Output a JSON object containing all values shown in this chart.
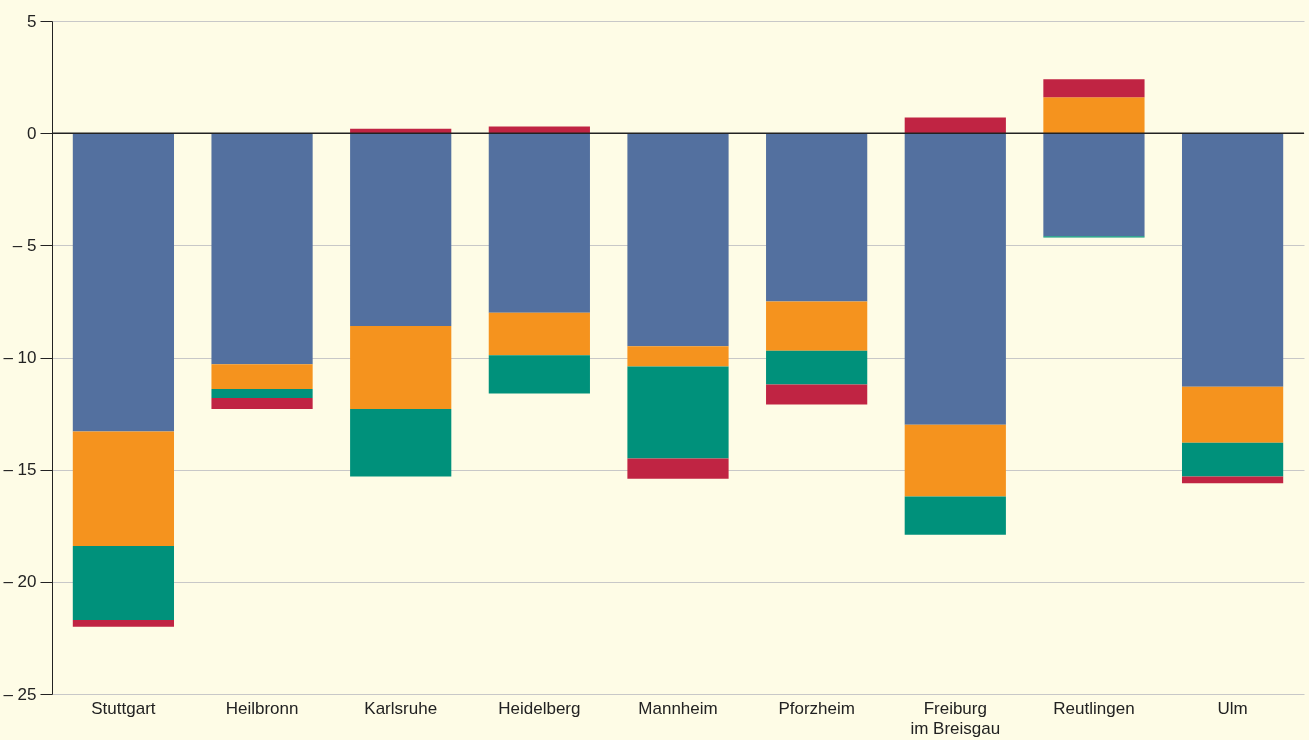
{
  "chart_data": {
    "type": "bar",
    "stacked": true,
    "categories": [
      "Stuttgart",
      "Heilbronn",
      "Karlsruhe",
      "Heidelberg",
      "Mannheim",
      "Pforzheim",
      "Freiburg\nim Breisgau",
      "Reutlingen",
      "Ulm"
    ],
    "series": [
      {
        "color": "#53709f",
        "values": [
          -13.3,
          -10.3,
          -8.6,
          -8.0,
          -9.5,
          -7.5,
          -13.0,
          -4.6,
          -11.3
        ]
      },
      {
        "color": "#f5931e",
        "values": [
          -5.1,
          -1.1,
          -3.7,
          -1.9,
          -0.9,
          -2.2,
          -3.2,
          1.6,
          -2.5
        ]
      },
      {
        "color": "#00917b",
        "values": [
          -3.3,
          -0.4,
          -3.0,
          -1.7,
          -4.1,
          -1.5,
          -1.7,
          -0.05,
          -1.5
        ]
      },
      {
        "color": "#c02443",
        "values": [
          -0.3,
          -0.5,
          0.2,
          0.3,
          -0.9,
          -0.9,
          0.7,
          0.8,
          -0.3
        ]
      }
    ],
    "ylim": [
      -25,
      5
    ],
    "yticks": [
      {
        "value": -25,
        "label": "– 25"
      },
      {
        "value": -20,
        "label": "– 20"
      },
      {
        "value": -15,
        "label": "– 15"
      },
      {
        "value": -10,
        "label": "– 10"
      },
      {
        "value": -5,
        "label": "– 5"
      },
      0,
      5
    ],
    "ref_lines": [
      {
        "axis": "y",
        "value": 0,
        "color": "#222222"
      }
    ],
    "grid": "y"
  }
}
